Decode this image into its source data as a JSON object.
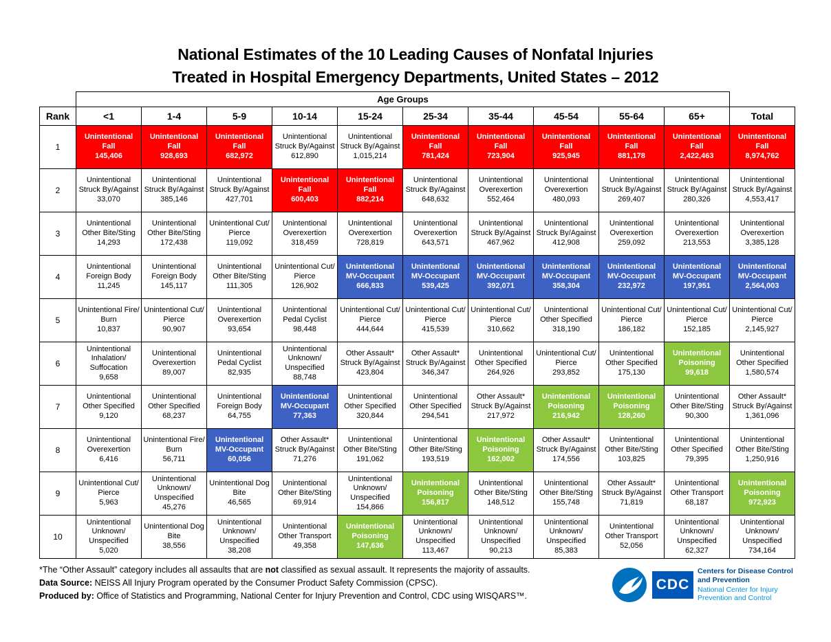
{
  "title": {
    "line1": "National Estimates of the 10 Leading Causes of Nonfatal Injuries",
    "line2": "Treated in Hospital Emergency Departments, United States – 2012"
  },
  "table": {
    "age_groups_header": "Age Groups",
    "rank_header": "Rank",
    "columns": [
      "<1",
      "1-4",
      "5-9",
      "10-14",
      "15-24",
      "25-34",
      "35-44",
      "45-54",
      "55-64",
      "65+",
      "Total"
    ],
    "rows": [
      {
        "rank": "1",
        "cells": [
          {
            "label": "Unintentional Fall",
            "value": "145,406",
            "color": "red"
          },
          {
            "label": "Unintentional Fall",
            "value": "928,693",
            "color": "red"
          },
          {
            "label": "Unintentional Fall",
            "value": "682,972",
            "color": "red"
          },
          {
            "label": "Unintentional Struck By/Against",
            "value": "612,890",
            "color": "white"
          },
          {
            "label": "Unintentional Struck By/Against",
            "value": "1,015,214",
            "color": "white"
          },
          {
            "label": "Unintentional Fall",
            "value": "781,424",
            "color": "red"
          },
          {
            "label": "Unintentional Fall",
            "value": "723,904",
            "color": "red"
          },
          {
            "label": "Unintentional Fall",
            "value": "925,945",
            "color": "red"
          },
          {
            "label": "Unintentional Fall",
            "value": "881,178",
            "color": "red"
          },
          {
            "label": "Unintentional Fall",
            "value": "2,422,463",
            "color": "red"
          },
          {
            "label": "Unintentional Fall",
            "value": "8,974,762",
            "color": "red"
          }
        ]
      },
      {
        "rank": "2",
        "cells": [
          {
            "label": "Unintentional Struck By/Against",
            "value": "33,070",
            "color": "white"
          },
          {
            "label": "Unintentional Struck By/Against",
            "value": "385,146",
            "color": "white"
          },
          {
            "label": "Unintentional Struck By/Against",
            "value": "427,701",
            "color": "white"
          },
          {
            "label": "Unintentional Fall",
            "value": "600,403",
            "color": "red"
          },
          {
            "label": "Unintentional Fall",
            "value": "882,214",
            "color": "red"
          },
          {
            "label": "Unintentional Struck By/Against",
            "value": "648,632",
            "color": "white"
          },
          {
            "label": "Unintentional Overexertion",
            "value": "552,464",
            "color": "white"
          },
          {
            "label": "Unintentional Overexertion",
            "value": "480,093",
            "color": "white"
          },
          {
            "label": "Unintentional Struck By/Against",
            "value": "269,407",
            "color": "white"
          },
          {
            "label": "Unintentional Struck By/Against",
            "value": "280,326",
            "color": "white"
          },
          {
            "label": "Unintentional Struck By/Against",
            "value": "4,553,417",
            "color": "white"
          }
        ]
      },
      {
        "rank": "3",
        "cells": [
          {
            "label": "Unintentional Other Bite/Sting",
            "value": "14,293",
            "color": "white"
          },
          {
            "label": "Unintentional Other Bite/Sting",
            "value": "172,438",
            "color": "white"
          },
          {
            "label": "Unintentional Cut/Pierce",
            "value": "119,092",
            "color": "white"
          },
          {
            "label": "Unintentional Overexertion",
            "value": "318,459",
            "color": "white"
          },
          {
            "label": "Unintentional Overexertion",
            "value": "728,819",
            "color": "white"
          },
          {
            "label": "Unintentional Overexertion",
            "value": "643,571",
            "color": "white"
          },
          {
            "label": "Unintentional Struck By/Against",
            "value": "467,962",
            "color": "white"
          },
          {
            "label": "Unintentional Struck By/Against",
            "value": "412,908",
            "color": "white"
          },
          {
            "label": "Unintentional Overexertion",
            "value": "259,092",
            "color": "white"
          },
          {
            "label": "Unintentional Overexertion",
            "value": "213,553",
            "color": "white"
          },
          {
            "label": "Unintentional Overexertion",
            "value": "3,385,128",
            "color": "white"
          }
        ]
      },
      {
        "rank": "4",
        "cells": [
          {
            "label": "Unintentional Foreign Body",
            "value": "11,245",
            "color": "white"
          },
          {
            "label": "Unintentional Foreign Body",
            "value": "145,117",
            "color": "white"
          },
          {
            "label": "Unintentional Other Bite/Sting",
            "value": "111,305",
            "color": "white"
          },
          {
            "label": "Unintentional Cut/Pierce",
            "value": "126,902",
            "color": "white"
          },
          {
            "label": "Unintentional MV-Occupant",
            "value": "666,833",
            "color": "blue"
          },
          {
            "label": "Unintentional MV-Occupant",
            "value": "539,425",
            "color": "blue"
          },
          {
            "label": "Unintentional MV-Occupant",
            "value": "392,071",
            "color": "blue"
          },
          {
            "label": "Unintentional MV-Occupant",
            "value": "358,304",
            "color": "blue"
          },
          {
            "label": "Unintentional MV-Occupant",
            "value": "232,972",
            "color": "blue"
          },
          {
            "label": "Unintentional MV-Occupant",
            "value": "197,951",
            "color": "blue"
          },
          {
            "label": "Unintentional MV-Occupant",
            "value": "2,564,003",
            "color": "blue"
          }
        ]
      },
      {
        "rank": "5",
        "cells": [
          {
            "label": "Unintentional Fire/Burn",
            "value": "10,837",
            "color": "white"
          },
          {
            "label": "Unintentional Cut/Pierce",
            "value": "90,907",
            "color": "white"
          },
          {
            "label": "Unintentional Overexertion",
            "value": "93,654",
            "color": "white"
          },
          {
            "label": "Unintentional Pedal Cyclist",
            "value": "98,448",
            "color": "white"
          },
          {
            "label": "Unintentional Cut/Pierce",
            "value": "444,644",
            "color": "white"
          },
          {
            "label": "Unintentional Cut/Pierce",
            "value": "415,539",
            "color": "white"
          },
          {
            "label": "Unintentional Cut/Pierce",
            "value": "310,662",
            "color": "white"
          },
          {
            "label": "Unintentional Other Specified",
            "value": "318,190",
            "color": "white"
          },
          {
            "label": "Unintentional Cut/Pierce",
            "value": "186,182",
            "color": "white"
          },
          {
            "label": "Unintentional Cut/Pierce",
            "value": "152,185",
            "color": "white"
          },
          {
            "label": "Unintentional Cut/Pierce",
            "value": "2,145,927",
            "color": "white"
          }
        ]
      },
      {
        "rank": "6",
        "cells": [
          {
            "label": "Unintentional Inhalation/Suffocation",
            "value": "9,658",
            "color": "white"
          },
          {
            "label": "Unintentional Overexertion",
            "value": "89,007",
            "color": "white"
          },
          {
            "label": "Unintentional Pedal Cyclist",
            "value": "82,935",
            "color": "white"
          },
          {
            "label": "Unintentional Unknown/Unspecified",
            "value": "88,748",
            "color": "white"
          },
          {
            "label": "Other Assault* Struck By/Against",
            "value": "423,804",
            "color": "white"
          },
          {
            "label": "Other Assault* Struck By/Against",
            "value": "346,347",
            "color": "white"
          },
          {
            "label": "Unintentional Other Specified",
            "value": "264,926",
            "color": "white"
          },
          {
            "label": "Unintentional Cut/Pierce",
            "value": "293,852",
            "color": "white"
          },
          {
            "label": "Unintentional Other Specified",
            "value": "175,130",
            "color": "white"
          },
          {
            "label": "Unintentional Poisoning",
            "value": "99,618",
            "color": "green"
          },
          {
            "label": "Unintentional Other Specified",
            "value": "1,580,574",
            "color": "white"
          }
        ]
      },
      {
        "rank": "7",
        "cells": [
          {
            "label": "Unintentional Other Specified",
            "value": "9,120",
            "color": "white"
          },
          {
            "label": "Unintentional Other Specified",
            "value": "68,237",
            "color": "white"
          },
          {
            "label": "Unintentional Foreign Body",
            "value": "64,755",
            "color": "white"
          },
          {
            "label": "Unintentional MV-Occupant",
            "value": "77,363",
            "color": "blue"
          },
          {
            "label": "Unintentional Other Specified",
            "value": "320,844",
            "color": "white"
          },
          {
            "label": "Unintentional Other Specified",
            "value": "294,541",
            "color": "white"
          },
          {
            "label": "Other Assault* Struck By/Against",
            "value": "217,972",
            "color": "white"
          },
          {
            "label": "Unintentional Poisoning",
            "value": "216,942",
            "color": "green"
          },
          {
            "label": "Unintentional Poisoning",
            "value": "128,260",
            "color": "green"
          },
          {
            "label": "Unintentional Other Bite/Sting",
            "value": "90,300",
            "color": "white"
          },
          {
            "label": "Other Assault* Struck By/Against",
            "value": "1,361,096",
            "color": "white"
          }
        ]
      },
      {
        "rank": "8",
        "cells": [
          {
            "label": "Unintentional Overexertion",
            "value": "6,416",
            "color": "white"
          },
          {
            "label": "Unintentional Fire/Burn",
            "value": "56,711",
            "color": "white"
          },
          {
            "label": "Unintentional MV-Occupant",
            "value": "60,056",
            "color": "blue"
          },
          {
            "label": "Other Assault* Struck By/Against",
            "value": "71,276",
            "color": "white"
          },
          {
            "label": "Unintentional Other Bite/Sting",
            "value": "191,062",
            "color": "white"
          },
          {
            "label": "Unintentional Other Bite/Sting",
            "value": "193,519",
            "color": "white"
          },
          {
            "label": "Unintentional Poisoning",
            "value": "162,002",
            "color": "green"
          },
          {
            "label": "Other Assault* Struck By/Against",
            "value": "174,556",
            "color": "white"
          },
          {
            "label": "Unintentional Other Bite/Sting",
            "value": "103,825",
            "color": "white"
          },
          {
            "label": "Unintentional Other Specified",
            "value": "79,395",
            "color": "white"
          },
          {
            "label": "Unintentional Other Bite/Sting",
            "value": "1,250,916",
            "color": "white"
          }
        ]
      },
      {
        "rank": "9",
        "cells": [
          {
            "label": "Unintentional Cut/Pierce",
            "value": "5,963",
            "color": "white"
          },
          {
            "label": "Unintentional Unknown/Unspecified",
            "value": "45,276",
            "color": "white"
          },
          {
            "label": "Unintentional Dog Bite",
            "value": "46,565",
            "color": "white"
          },
          {
            "label": "Unintentional Other Bite/Sting",
            "value": "69,914",
            "color": "white"
          },
          {
            "label": "Unintentional Unknown/Unspecified",
            "value": "154,866",
            "color": "white"
          },
          {
            "label": "Unintentional Poisoning",
            "value": "156,817",
            "color": "green"
          },
          {
            "label": "Unintentional Other Bite/Sting",
            "value": "148,512",
            "color": "white"
          },
          {
            "label": "Unintentional Other Bite/Sting",
            "value": "155,748",
            "color": "white"
          },
          {
            "label": "Other Assault* Struck By/Against",
            "value": "71,819",
            "color": "white"
          },
          {
            "label": "Unintentional Other Transport",
            "value": "68,187",
            "color": "white"
          },
          {
            "label": "Unintentional Poisoning",
            "value": "972,923",
            "color": "green"
          }
        ]
      },
      {
        "rank": "10",
        "cells": [
          {
            "label": "Unintentional Unknown/Unspecified",
            "value": "5,020",
            "color": "white"
          },
          {
            "label": "Unintentional Dog Bite",
            "value": "38,556",
            "color": "white"
          },
          {
            "label": "Unintentional Unknown/Unspecified",
            "value": "38,208",
            "color": "white"
          },
          {
            "label": "Unintentional Other Transport",
            "value": "49,358",
            "color": "white"
          },
          {
            "label": "Unintentional Poisoning",
            "value": "147,636",
            "color": "green"
          },
          {
            "label": "Unintentional Unknown/Unspecified",
            "value": "113,467",
            "color": "white"
          },
          {
            "label": "Unintentional Unknown/Unspecified",
            "value": "90,213",
            "color": "white"
          },
          {
            "label": "Unintentional Unknown/Unspecified",
            "value": "85,383",
            "color": "white"
          },
          {
            "label": "Unintentional Other Transport",
            "value": "52,056",
            "color": "white"
          },
          {
            "label": "Unintentional Unknown/Unspecified",
            "value": "62,327",
            "color": "white"
          },
          {
            "label": "Unintentional Unknown/Unspecified",
            "value": "734,164",
            "color": "white"
          }
        ]
      }
    ]
  },
  "footnotes": {
    "assault_note": {
      "pre": "*The “Other Assault” category includes all assaults that are ",
      "bold": "not",
      "post": " classified as sexual assault. It represents the majority of assaults."
    },
    "data_source": {
      "label": "Data Source:",
      "text": " NEISS All Injury Program operated by the Consumer Product Safety Commission (CPSC)."
    },
    "produced_by": {
      "label": "Produced by:",
      "text": " Office of Statistics and Programming, National Center for Injury Prevention and Control, CDC using WISQARS™."
    }
  },
  "logos": {
    "cdc_label": "CDC",
    "org_line1": "Centers for Disease Control and Prevention",
    "org_line2": "National Center for Injury Prevention and Control"
  },
  "colors": {
    "red": "#FE0000",
    "blue": "#3E62C4",
    "green": "#8DC63F",
    "cdc_blue": "#0057B8",
    "org_dark_blue": "#004B8D",
    "org_light_blue": "#0096D6"
  }
}
